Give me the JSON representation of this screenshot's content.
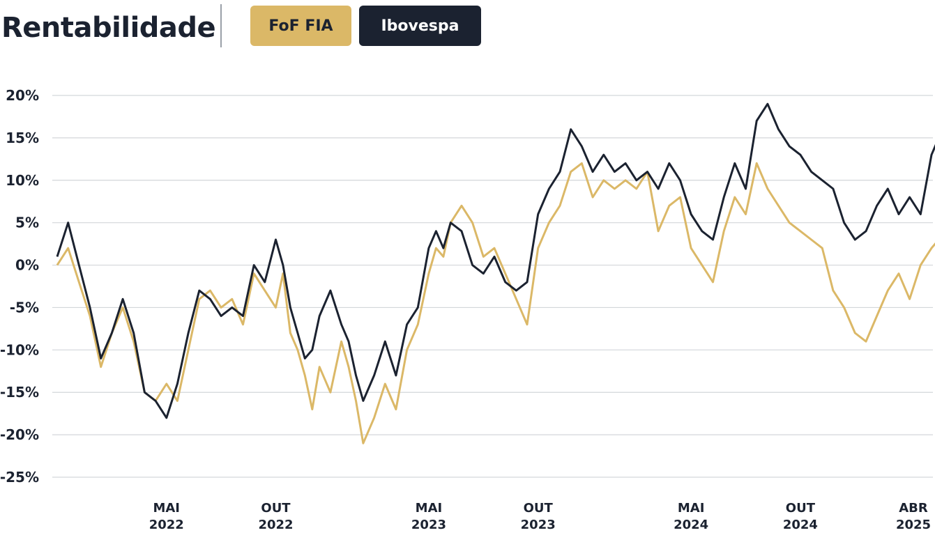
{
  "header": {
    "title": "Rentabilidade",
    "legend": [
      {
        "label": "FoF FIA",
        "color": "#dbb867",
        "text_color": "#1b2230"
      },
      {
        "label": "Ibovespa",
        "color": "#1b2230",
        "text_color": "#ffffff"
      }
    ]
  },
  "chart_data": {
    "type": "line",
    "title": "Rentabilidade",
    "xlabel": "",
    "ylabel": "",
    "ylim": [
      -25,
      20
    ],
    "grid": true,
    "x_ticks": [
      {
        "month": "MAI",
        "year": "2022",
        "date": "2022-05"
      },
      {
        "month": "OUT",
        "year": "2022",
        "date": "2022-10"
      },
      {
        "month": "MAI",
        "year": "2023",
        "date": "2023-05"
      },
      {
        "month": "OUT",
        "year": "2023",
        "date": "2023-10"
      },
      {
        "month": "MAI",
        "year": "2024",
        "date": "2024-05"
      },
      {
        "month": "OUT",
        "year": "2024",
        "date": "2024-10"
      },
      {
        "month": "ABR",
        "year": "2025",
        "date": "2025-04"
      }
    ],
    "y_ticks": [
      "20%",
      "15%",
      "10%",
      "5%",
      "0%",
      "-5%",
      "-10%",
      "-15%",
      "-20%",
      "-25%"
    ],
    "series": [
      {
        "name": "FoF FIA",
        "color": "#dbb867",
        "points": [
          [
            "2021-12",
            0
          ],
          [
            "2021-12",
            2
          ],
          [
            "2022-01",
            -2
          ],
          [
            "2022-01",
            -6
          ],
          [
            "2022-02",
            -12
          ],
          [
            "2022-02",
            -8
          ],
          [
            "2022-03",
            -5
          ],
          [
            "2022-03",
            -9
          ],
          [
            "2022-04",
            -15
          ],
          [
            "2022-04",
            -16
          ],
          [
            "2022-05",
            -14
          ],
          [
            "2022-05",
            -16
          ],
          [
            "2022-06",
            -10
          ],
          [
            "2022-06",
            -4
          ],
          [
            "2022-07",
            -3
          ],
          [
            "2022-07",
            -5
          ],
          [
            "2022-08",
            -4
          ],
          [
            "2022-08",
            -7
          ],
          [
            "2022-09",
            -1
          ],
          [
            "2022-09",
            -3
          ],
          [
            "2022-10",
            -5
          ],
          [
            "2022-10",
            -1
          ],
          [
            "2022-10",
            -8
          ],
          [
            "2022-11",
            -10
          ],
          [
            "2022-11",
            -13
          ],
          [
            "2022-11",
            -17
          ],
          [
            "2022-12",
            -12
          ],
          [
            "2022-12",
            -15
          ],
          [
            "2023-01",
            -9
          ],
          [
            "2023-01",
            -12
          ],
          [
            "2023-01",
            -16
          ],
          [
            "2023-02",
            -21
          ],
          [
            "2023-02",
            -18
          ],
          [
            "2023-03",
            -14
          ],
          [
            "2023-03",
            -17
          ],
          [
            "2023-04",
            -10
          ],
          [
            "2023-04",
            -7
          ],
          [
            "2023-05",
            -1
          ],
          [
            "2023-05",
            2
          ],
          [
            "2023-05",
            1
          ],
          [
            "2023-06",
            5
          ],
          [
            "2023-06",
            7
          ],
          [
            "2023-07",
            5
          ],
          [
            "2023-07",
            1
          ],
          [
            "2023-08",
            2
          ],
          [
            "2023-08",
            -1
          ],
          [
            "2023-09",
            -4
          ],
          [
            "2023-09",
            -7
          ],
          [
            "2023-10",
            2
          ],
          [
            "2023-10",
            5
          ],
          [
            "2023-11",
            7
          ],
          [
            "2023-11",
            11
          ],
          [
            "2023-12",
            12
          ],
          [
            "2023-12",
            8
          ],
          [
            "2024-01",
            10
          ],
          [
            "2024-01",
            9
          ],
          [
            "2024-02",
            10
          ],
          [
            "2024-02",
            9
          ],
          [
            "2024-03",
            11
          ],
          [
            "2024-03",
            4
          ],
          [
            "2024-04",
            7
          ],
          [
            "2024-04",
            8
          ],
          [
            "2024-05",
            2
          ],
          [
            "2024-05",
            0
          ],
          [
            "2024-06",
            -2
          ],
          [
            "2024-06",
            4
          ],
          [
            "2024-07",
            8
          ],
          [
            "2024-07",
            6
          ],
          [
            "2024-08",
            12
          ],
          [
            "2024-08",
            9
          ],
          [
            "2024-09",
            7
          ],
          [
            "2024-09",
            5
          ],
          [
            "2024-10",
            4
          ],
          [
            "2024-10",
            3
          ],
          [
            "2024-11",
            2
          ],
          [
            "2024-11",
            -3
          ],
          [
            "2024-12",
            -5
          ],
          [
            "2024-12",
            -8
          ],
          [
            "2025-01",
            -9
          ],
          [
            "2025-01",
            -6
          ],
          [
            "2025-02",
            -3
          ],
          [
            "2025-02",
            -1
          ],
          [
            "2025-03",
            -4
          ],
          [
            "2025-03",
            0
          ],
          [
            "2025-04",
            2
          ],
          [
            "2025-04",
            3
          ],
          [
            "2025-04",
            1.5
          ]
        ]
      },
      {
        "name": "Ibovespa",
        "color": "#1b2230",
        "points": [
          [
            "2021-12",
            1
          ],
          [
            "2021-12",
            5
          ],
          [
            "2022-01",
            0
          ],
          [
            "2022-01",
            -5
          ],
          [
            "2022-02",
            -11
          ],
          [
            "2022-02",
            -8
          ],
          [
            "2022-03",
            -4
          ],
          [
            "2022-03",
            -8
          ],
          [
            "2022-04",
            -15
          ],
          [
            "2022-04",
            -16
          ],
          [
            "2022-05",
            -18
          ],
          [
            "2022-05",
            -14
          ],
          [
            "2022-06",
            -8
          ],
          [
            "2022-06",
            -3
          ],
          [
            "2022-07",
            -4
          ],
          [
            "2022-07",
            -6
          ],
          [
            "2022-08",
            -5
          ],
          [
            "2022-08",
            -6
          ],
          [
            "2022-09",
            0
          ],
          [
            "2022-09",
            -2
          ],
          [
            "2022-10",
            3
          ],
          [
            "2022-10",
            0
          ],
          [
            "2022-10",
            -5
          ],
          [
            "2022-11",
            -8
          ],
          [
            "2022-11",
            -11
          ],
          [
            "2022-11",
            -10
          ],
          [
            "2022-12",
            -6
          ],
          [
            "2022-12",
            -3
          ],
          [
            "2023-01",
            -7
          ],
          [
            "2023-01",
            -9
          ],
          [
            "2023-01",
            -13
          ],
          [
            "2023-02",
            -16
          ],
          [
            "2023-02",
            -13
          ],
          [
            "2023-03",
            -9
          ],
          [
            "2023-03",
            -13
          ],
          [
            "2023-04",
            -7
          ],
          [
            "2023-04",
            -5
          ],
          [
            "2023-05",
            2
          ],
          [
            "2023-05",
            4
          ],
          [
            "2023-05",
            2
          ],
          [
            "2023-06",
            5
          ],
          [
            "2023-06",
            4
          ],
          [
            "2023-07",
            0
          ],
          [
            "2023-07",
            -1
          ],
          [
            "2023-08",
            1
          ],
          [
            "2023-08",
            -2
          ],
          [
            "2023-09",
            -3
          ],
          [
            "2023-09",
            -2
          ],
          [
            "2023-10",
            6
          ],
          [
            "2023-10",
            9
          ],
          [
            "2023-11",
            11
          ],
          [
            "2023-11",
            16
          ],
          [
            "2023-12",
            14
          ],
          [
            "2023-12",
            11
          ],
          [
            "2024-01",
            13
          ],
          [
            "2024-01",
            11
          ],
          [
            "2024-02",
            12
          ],
          [
            "2024-02",
            10
          ],
          [
            "2024-03",
            11
          ],
          [
            "2024-03",
            9
          ],
          [
            "2024-04",
            12
          ],
          [
            "2024-04",
            10
          ],
          [
            "2024-05",
            6
          ],
          [
            "2024-05",
            4
          ],
          [
            "2024-06",
            3
          ],
          [
            "2024-06",
            8
          ],
          [
            "2024-07",
            12
          ],
          [
            "2024-07",
            9
          ],
          [
            "2024-08",
            17
          ],
          [
            "2024-08",
            19
          ],
          [
            "2024-09",
            16
          ],
          [
            "2024-09",
            14
          ],
          [
            "2024-10",
            13
          ],
          [
            "2024-10",
            11
          ],
          [
            "2024-11",
            10
          ],
          [
            "2024-11",
            9
          ],
          [
            "2024-12",
            5
          ],
          [
            "2024-12",
            3
          ],
          [
            "2025-01",
            4
          ],
          [
            "2025-01",
            7
          ],
          [
            "2025-02",
            9
          ],
          [
            "2025-02",
            6
          ],
          [
            "2025-03",
            8
          ],
          [
            "2025-03",
            6
          ],
          [
            "2025-04",
            13
          ],
          [
            "2025-04",
            15
          ],
          [
            "2025-04",
            13
          ]
        ]
      }
    ]
  }
}
